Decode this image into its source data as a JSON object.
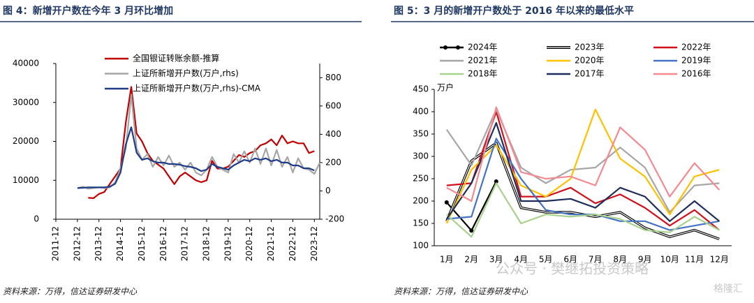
{
  "chart_data": [
    {
      "type": "line",
      "title": "图 4：新增开户数在今年 3 月环比增加",
      "source": "资料来源：万得，信达证券研发中心",
      "x": [
        "2012-12",
        "2013-03",
        "2013-06",
        "2013-09",
        "2013-12",
        "2014-03",
        "2014-06",
        "2014-09",
        "2014-12",
        "2015-03",
        "2015-06",
        "2015-09",
        "2015-12",
        "2016-03",
        "2016-06",
        "2016-09",
        "2016-12",
        "2017-03",
        "2017-06",
        "2017-09",
        "2017-12",
        "2018-03",
        "2018-06",
        "2018-09",
        "2018-12",
        "2019-03",
        "2019-06",
        "2019-09",
        "2019-12",
        "2020-03",
        "2020-06",
        "2020-09",
        "2020-12",
        "2021-03",
        "2021-06",
        "2021-09",
        "2021-12",
        "2022-03",
        "2022-06",
        "2022-09",
        "2022-12",
        "2023-03",
        "2023-06",
        "2023-09",
        "2023-12",
        "2024-03"
      ],
      "xlim": [
        "2011-12",
        "2024-03"
      ],
      "xticks": [
        "2011-12",
        "2012-12",
        "2013-12",
        "2014-12",
        "2015-12",
        "2016-12",
        "2017-12",
        "2018-12",
        "2019-12",
        "2020-12",
        "2021-12",
        "2022-12",
        "2023-12"
      ],
      "ylim": [
        0,
        40000
      ],
      "yticks": [
        0,
        10000,
        20000,
        30000,
        40000
      ],
      "y2lim": [
        -200,
        900
      ],
      "y2ticks": [
        -200,
        0,
        200,
        400,
        600,
        800
      ],
      "series": [
        {
          "name": "全国银证转账余额-推算",
          "color": "#c00000",
          "values": [
            null,
            null,
            5500,
            5400,
            6500,
            7000,
            9000,
            11000,
            13000,
            25000,
            34000,
            22000,
            20000,
            17000,
            15000,
            14000,
            13000,
            11000,
            9000,
            11000,
            12000,
            11000,
            10000,
            9500,
            10000,
            15000,
            13000,
            13000,
            13500,
            15000,
            16500,
            16000,
            17000,
            17500,
            19000,
            19500,
            20500,
            19000,
            21500,
            19500,
            20000,
            19500,
            19500,
            17000,
            17500,
            null
          ]
        },
        {
          "name": "上证所新增开户数(万户,rhs)",
          "color": "#a6a6a6",
          "axis": "y2",
          "values": [
            20,
            30,
            15,
            20,
            25,
            20,
            25,
            60,
            160,
            300,
            680,
            300,
            220,
            260,
            170,
            240,
            180,
            250,
            170,
            200,
            150,
            200,
            130,
            110,
            150,
            240,
            170,
            150,
            130,
            260,
            200,
            280,
            200,
            300,
            190,
            300,
            180,
            290,
            170,
            240,
            130,
            230,
            160,
            150,
            120,
            200
          ]
        },
        {
          "name": "上证所新增开户数(万户,rhs)-CMA",
          "color": "#1f3c88",
          "axis": "y2",
          "values": [
            20,
            22,
            25,
            25,
            25,
            25,
            30,
            50,
            130,
            330,
            450,
            270,
            220,
            230,
            210,
            200,
            200,
            190,
            190,
            185,
            175,
            170,
            160,
            140,
            150,
            190,
            170,
            160,
            150,
            180,
            200,
            220,
            210,
            230,
            220,
            230,
            210,
            220,
            200,
            200,
            180,
            180,
            160,
            160,
            145,
            null
          ]
        }
      ]
    },
    {
      "type": "line",
      "title": "图 5：3 月的新增开户数处于 2016 年以来的最低水平",
      "source": "资料来源：万得，信达证券研发中心",
      "y_label": "万户",
      "categories": [
        "1月",
        "2月",
        "3月",
        "4月",
        "5月",
        "6月",
        "7月",
        "8月",
        "9月",
        "10月",
        "11月",
        "12月"
      ],
      "ylim": [
        100,
        450
      ],
      "yticks": [
        100,
        150,
        200,
        250,
        300,
        350,
        400,
        450
      ],
      "series": [
        {
          "name": "2024年",
          "color": "#000000",
          "markers": true,
          "values": [
            197,
            134,
            244,
            null,
            null,
            null,
            null,
            null,
            null,
            null,
            null,
            null
          ]
        },
        {
          "name": "2023年",
          "color": "#000000",
          "style": "double",
          "values": [
            155,
            290,
            330,
            185,
            175,
            175,
            165,
            175,
            140,
            120,
            135,
            115
          ]
        },
        {
          "name": "2022年",
          "color": "#d0101b",
          "values": [
            235,
            240,
            400,
            210,
            210,
            230,
            195,
            215,
            185,
            145,
            180,
            135
          ]
        },
        {
          "name": "2021年",
          "color": "#a6a6a6",
          "values": [
            360,
            280,
            405,
            275,
            240,
            270,
            275,
            320,
            275,
            175,
            235,
            240
          ]
        },
        {
          "name": "2020年",
          "color": "#ffc000",
          "values": [
            150,
            270,
            325,
            235,
            210,
            250,
            405,
            295,
            255,
            170,
            255,
            270
          ]
        },
        {
          "name": "2019年",
          "color": "#4472c4",
          "values": [
            160,
            165,
            340,
            250,
            180,
            170,
            170,
            155,
            155,
            135,
            145,
            155
          ]
        },
        {
          "name": "2018年",
          "color": "#a9d18e",
          "values": [
            170,
            120,
            240,
            150,
            170,
            165,
            170,
            160,
            135,
            130,
            165,
            135
          ]
        },
        {
          "name": "2017年",
          "color": "#1f2d5a",
          "values": [
            160,
            240,
            375,
            200,
            200,
            205,
            185,
            230,
            210,
            155,
            200,
            155
          ]
        },
        {
          "name": "2016年",
          "color": "#f4898f",
          "values": [
            230,
            200,
            410,
            265,
            250,
            255,
            235,
            365,
            315,
            210,
            285,
            225
          ]
        }
      ]
    }
  ],
  "watermark": [
    "公众号 · 樊继拓投资策略",
    "格隆汇"
  ]
}
